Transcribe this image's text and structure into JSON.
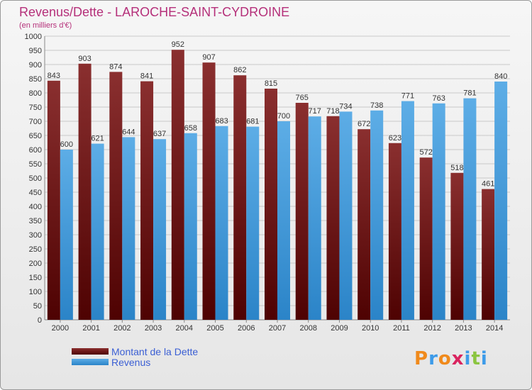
{
  "title": "Revenus/Dette - LAROCHE-SAINT-CYDROINE",
  "subtitle": "(en milliers d'€)",
  "logo": "Proxiti",
  "colors": {
    "debt_top": "#8a2f2f",
    "debt_bottom": "#4e0202",
    "rev_top": "#5dade6",
    "rev_bottom": "#2b84c8",
    "grid": "#c9c9c9",
    "legend_text": "#3b5fd4",
    "title": "#b5307a"
  },
  "chart_data": {
    "type": "bar",
    "title": "Revenus/Dette - LAROCHE-SAINT-CYDROINE",
    "subtitle": "(en milliers d'€)",
    "categories": [
      "2000",
      "2001",
      "2002",
      "2003",
      "2004",
      "2005",
      "2006",
      "2007",
      "2008",
      "2009",
      "2010",
      "2011",
      "2012",
      "2013",
      "2014"
    ],
    "series": [
      {
        "name": "Montant de la Dette",
        "values": [
          843,
          903,
          874,
          841,
          952,
          907,
          862,
          815,
          765,
          718,
          672,
          623,
          572,
          518,
          461
        ]
      },
      {
        "name": "Revenus",
        "values": [
          600,
          621,
          644,
          637,
          658,
          683,
          681,
          700,
          717,
          734,
          738,
          771,
          763,
          781,
          840
        ]
      }
    ],
    "ylim": [
      0,
      1000
    ],
    "yticks": [
      0,
      50,
      100,
      150,
      200,
      250,
      300,
      350,
      400,
      450,
      500,
      550,
      600,
      650,
      700,
      750,
      800,
      850,
      900,
      950,
      1000
    ],
    "grid": true,
    "legend": "bottom-left"
  }
}
